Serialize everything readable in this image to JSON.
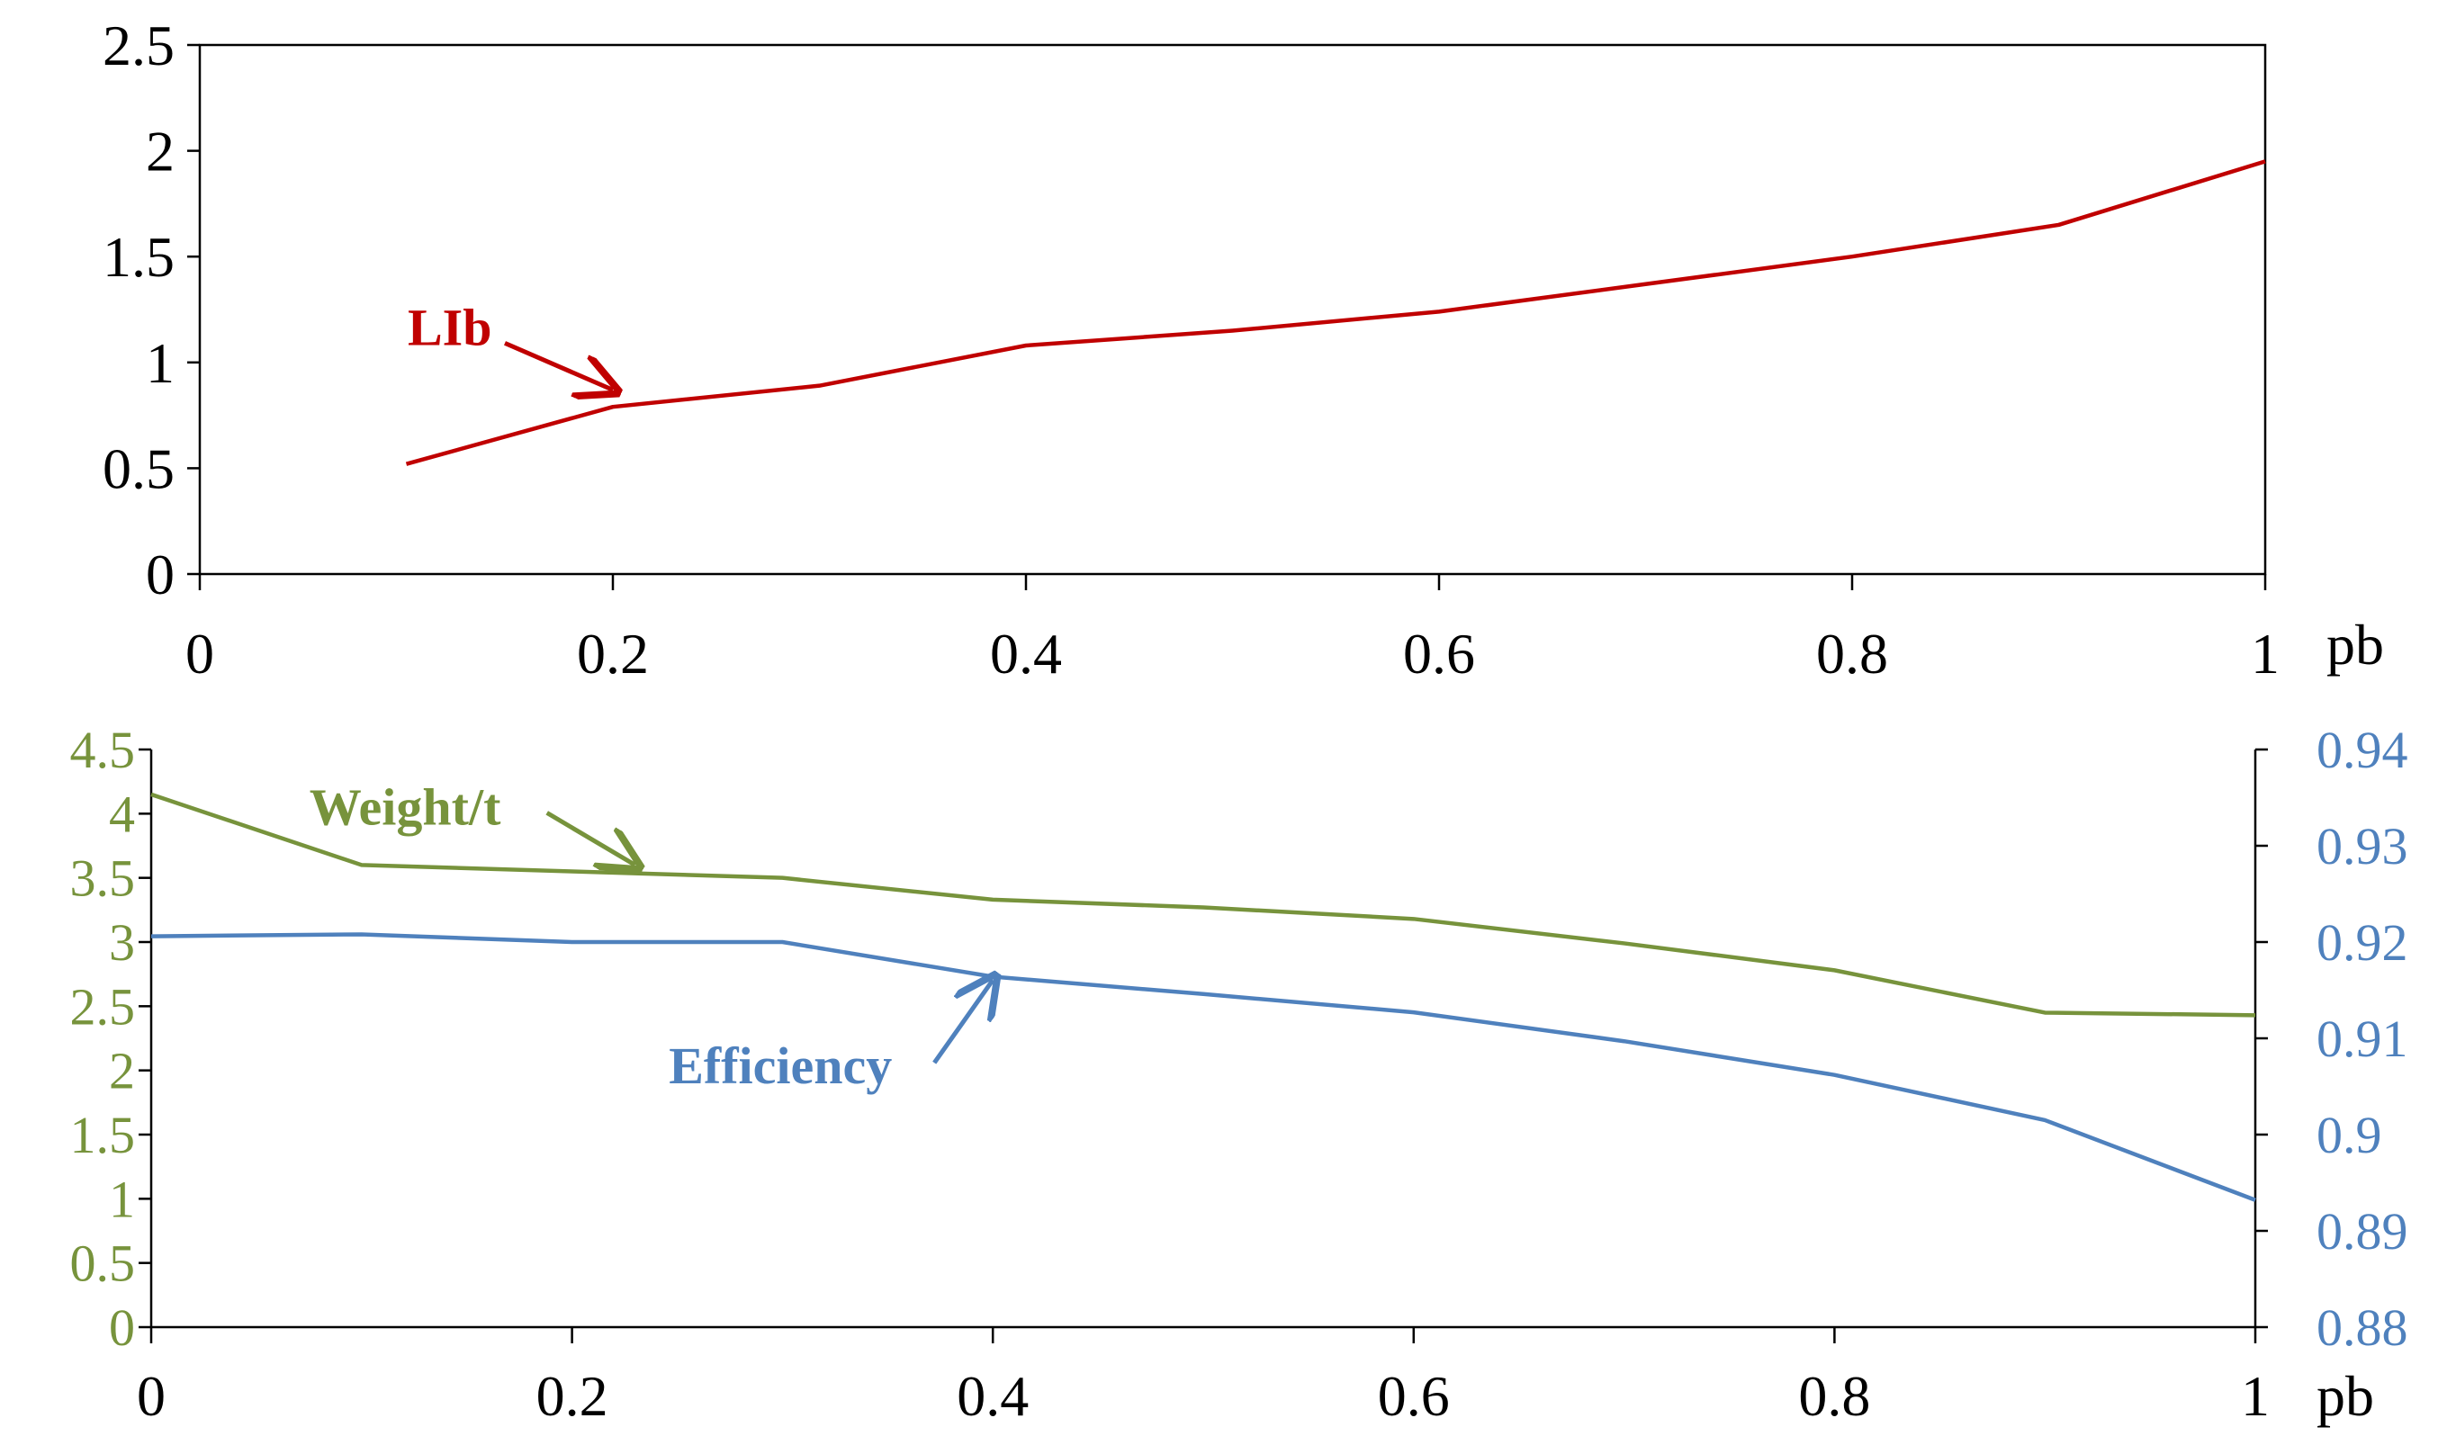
{
  "colors": {
    "lib": "#C00000",
    "weight": "#77933C",
    "efficiency": "#4F81BD",
    "axis": "#000000",
    "frame": "#000000"
  },
  "chart_data": [
    {
      "type": "line",
      "title": "",
      "xlabel": "pb",
      "ylabel": "",
      "xlim": [
        0,
        1
      ],
      "ylim": [
        0,
        2.5
      ],
      "x_ticks": [
        0,
        0.2,
        0.4,
        0.6,
        0.8,
        1
      ],
      "x_tick_labels": [
        "0",
        "0.2",
        "0.4",
        "0.6",
        "0.8",
        "1"
      ],
      "y_ticks": [
        0,
        0.5,
        1,
        1.5,
        2,
        2.5
      ],
      "y_tick_labels": [
        "0",
        "0.5",
        "1",
        "1.5",
        "2",
        "2.5"
      ],
      "grid": false,
      "series": [
        {
          "name": "LIb",
          "color": "#C00000",
          "x": [
            0.1,
            0.2,
            0.3,
            0.4,
            0.5,
            0.6,
            0.7,
            0.8,
            0.9,
            1.0
          ],
          "values": [
            0.52,
            0.79,
            0.89,
            1.08,
            1.15,
            1.24,
            1.37,
            1.5,
            1.65,
            1.95
          ]
        }
      ],
      "annotations": [
        {
          "text": "LIb",
          "series": "LIb",
          "points_to_x": 0.2,
          "points_to_y": 0.87
        }
      ]
    },
    {
      "type": "line",
      "title": "",
      "xlabel": "pb",
      "xlim": [
        0,
        1
      ],
      "x_ticks": [
        0,
        0.2,
        0.4,
        0.6,
        0.8,
        1
      ],
      "x_tick_labels": [
        "0",
        "0.2",
        "0.4",
        "0.6",
        "0.8",
        "1"
      ],
      "y_left": {
        "ylim": [
          0,
          4.5
        ],
        "ticks": [
          0,
          0.5,
          1,
          1.5,
          2,
          2.5,
          3,
          3.5,
          4,
          4.5
        ],
        "tick_labels": [
          "0",
          "0.5",
          "1",
          "1.5",
          "2",
          "2.5",
          "3",
          "3.5",
          "4",
          "4.5"
        ],
        "color": "#77933C"
      },
      "y_right": {
        "ylim": [
          0.88,
          0.94
        ],
        "ticks": [
          0.88,
          0.89,
          0.9,
          0.91,
          0.92,
          0.93,
          0.94
        ],
        "tick_labels": [
          "0.88",
          "0.89",
          "0.9",
          "0.91",
          "0.92",
          "0.93",
          "0.94"
        ],
        "color": "#4F81BD"
      },
      "grid": false,
      "series": [
        {
          "name": "Weight/t",
          "axis": "left",
          "color": "#77933C",
          "x": [
            0,
            0.1,
            0.2,
            0.3,
            0.4,
            0.5,
            0.6,
            0.7,
            0.8,
            0.9,
            1.0
          ],
          "values": [
            4.15,
            3.6,
            3.55,
            3.5,
            3.33,
            3.27,
            3.18,
            2.99,
            2.78,
            2.45,
            2.43
          ]
        },
        {
          "name": "Efficiency",
          "axis": "right",
          "color": "#4F81BD",
          "x": [
            0,
            0.1,
            0.2,
            0.3,
            0.4,
            0.5,
            0.6,
            0.7,
            0.8,
            0.9,
            1.0
          ],
          "values": [
            0.9206,
            0.9208,
            0.92,
            0.92,
            0.9164,
            0.9146,
            0.9127,
            0.9097,
            0.9062,
            0.9015,
            0.8932
          ]
        }
      ],
      "annotations": [
        {
          "text": "Weight/t",
          "series": "Weight/t",
          "points_to_x": 0.23,
          "points_to_y": 3.6
        },
        {
          "text": "Efficiency",
          "series": "Efficiency",
          "points_to_x": 0.4,
          "points_to_y": 0.9168
        }
      ]
    }
  ]
}
